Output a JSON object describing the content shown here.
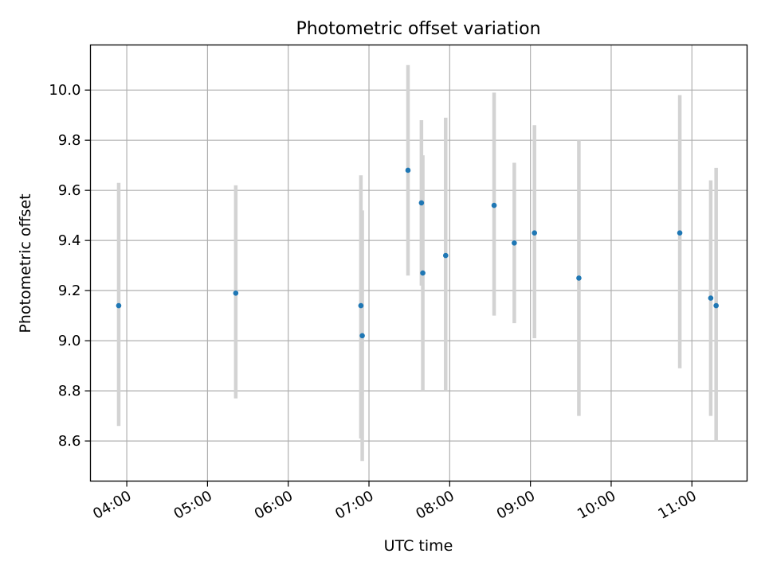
{
  "chart_data": {
    "type": "scatter",
    "title": "Photometric offset variation",
    "xlabel": "UTC time",
    "ylabel": "Photometric offset",
    "x_unit": "time (HH:MM UTC)",
    "xlim": [
      "03:33",
      "11:41"
    ],
    "ylim": [
      8.44,
      10.18
    ],
    "x_ticks": [
      "04:00",
      "05:00",
      "06:00",
      "07:00",
      "08:00",
      "09:00",
      "10:00",
      "11:00"
    ],
    "y_ticks": [
      "8.6",
      "8.8",
      "9.0",
      "9.2",
      "9.4",
      "9.6",
      "9.8",
      "10.0"
    ],
    "grid": true,
    "legend": "none",
    "marker_color": "#1f77b4",
    "errorbar_color": "#d3d3d3",
    "points": [
      {
        "x": "03:54",
        "y": 9.14,
        "ylow": 8.66,
        "yhigh": 9.63
      },
      {
        "x": "05:21",
        "y": 9.19,
        "ylow": 8.77,
        "yhigh": 9.62
      },
      {
        "x": "06:54",
        "y": 9.14,
        "ylow": 8.61,
        "yhigh": 9.66
      },
      {
        "x": "06:55",
        "y": 9.02,
        "ylow": 8.52,
        "yhigh": 9.52
      },
      {
        "x": "07:29",
        "y": 9.68,
        "ylow": 9.26,
        "yhigh": 10.1
      },
      {
        "x": "07:39",
        "y": 9.55,
        "ylow": 9.22,
        "yhigh": 9.88
      },
      {
        "x": "07:40",
        "y": 9.27,
        "ylow": 8.8,
        "yhigh": 9.74
      },
      {
        "x": "07:57",
        "y": 9.34,
        "ylow": 8.8,
        "yhigh": 9.89
      },
      {
        "x": "08:33",
        "y": 9.54,
        "ylow": 9.1,
        "yhigh": 9.99
      },
      {
        "x": "08:48",
        "y": 9.39,
        "ylow": 9.07,
        "yhigh": 9.71
      },
      {
        "x": "09:03",
        "y": 9.43,
        "ylow": 9.01,
        "yhigh": 9.86
      },
      {
        "x": "09:36",
        "y": 9.25,
        "ylow": 8.7,
        "yhigh": 9.8
      },
      {
        "x": "10:51",
        "y": 9.43,
        "ylow": 8.89,
        "yhigh": 9.98
      },
      {
        "x": "11:14",
        "y": 9.17,
        "ylow": 8.7,
        "yhigh": 9.64
      },
      {
        "x": "11:18",
        "y": 9.14,
        "ylow": 8.6,
        "yhigh": 9.69
      }
    ]
  }
}
